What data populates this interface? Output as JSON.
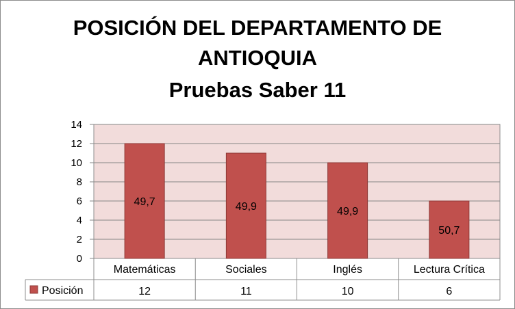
{
  "chart_data": {
    "type": "bar",
    "title_lines": [
      "POSICIÓN DEL DEPARTAMENTO DE",
      "ANTIOQUIA",
      "Pruebas Saber 11"
    ],
    "categories": [
      "Matemáticas",
      "Sociales",
      "Inglés",
      "Lectura Crítica"
    ],
    "series": [
      {
        "name": "Posición",
        "values": [
          12,
          11,
          10,
          6
        ],
        "data_labels": [
          "49,7",
          "49,9",
          "49,9",
          "50,7"
        ],
        "color": "#c0504d"
      }
    ],
    "y_ticks": [
      "0",
      "2",
      "4",
      "6",
      "8",
      "10",
      "12",
      "14"
    ],
    "ylim": [
      0,
      14
    ],
    "grid": true,
    "data_table": true,
    "plot_background": "#f2dcdb"
  }
}
